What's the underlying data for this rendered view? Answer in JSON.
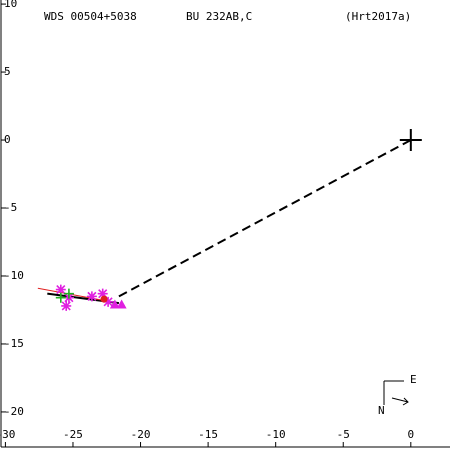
{
  "chart_data": {
    "type": "scatter",
    "title": "WDS 00504+5038",
    "subtitle": "BU  232AB,C",
    "reference": "(Hrt2017a)",
    "compass": {
      "east": "E",
      "north": "N"
    },
    "xlim": [
      -30.4,
      2.9
    ],
    "ylim": [
      -22.8,
      10.3
    ],
    "xticks": [
      -30,
      -25,
      -20,
      -15,
      -10,
      -5,
      0
    ],
    "yticks": [
      10,
      5,
      0,
      -5,
      -10,
      -15,
      -20
    ],
    "series": [
      {
        "marker": "asterisk",
        "color": "#e020e0",
        "x": [
          -25.9,
          -25.5,
          -25.3,
          -23.6,
          -22.8,
          -22.4
        ],
        "values": [
          -11.0,
          -12.2,
          -11.6,
          -11.5,
          -11.3,
          -11.9
        ]
      },
      {
        "marker": "plus",
        "color": "#20b020",
        "x": [
          -25.9,
          -25.3
        ],
        "values": [
          -11.6,
          -11.3
        ]
      },
      {
        "marker": "triangle",
        "color": "#e020e0",
        "x": [
          -21.9,
          -21.4
        ],
        "values": [
          -12.1,
          -12.1
        ]
      },
      {
        "marker": "circle",
        "color": "#e02020",
        "x": [
          -22.7
        ],
        "values": [
          -11.7
        ]
      },
      {
        "marker": "primary",
        "color": "#000000",
        "x": [
          0
        ],
        "values": [
          0
        ]
      }
    ],
    "lines": [
      {
        "color": "#000000",
        "dash": true,
        "x": [
          -21.6,
          0
        ],
        "values": [
          -11.5,
          0
        ]
      },
      {
        "color": "#000000",
        "dash": false,
        "x": [
          -26.9,
          -21.6
        ],
        "values": [
          -11.3,
          -12.0
        ]
      },
      {
        "color": "#e02020",
        "dash": false,
        "x": [
          -27.6,
          -22.7
        ],
        "values": [
          -10.9,
          -11.8
        ]
      }
    ]
  }
}
